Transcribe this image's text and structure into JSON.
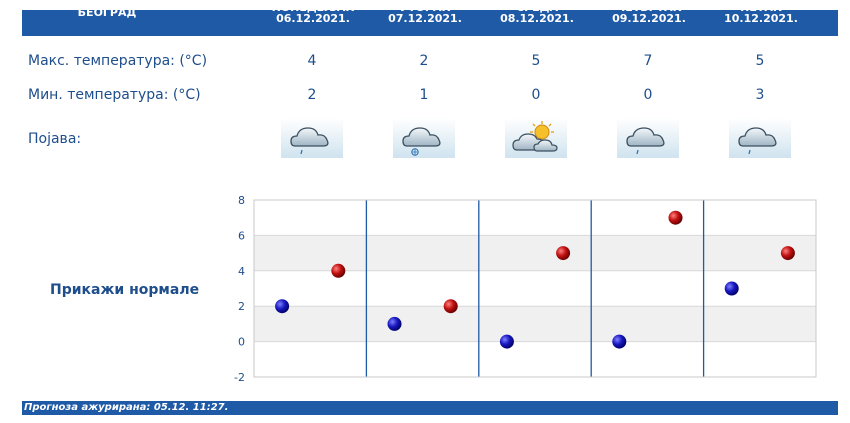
{
  "header": {
    "city": "БЕОГРАД",
    "days": [
      {
        "day": "ПОНЕДЕЉАК",
        "date": "06.12.2021."
      },
      {
        "day": "УТОРАК",
        "date": "07.12.2021."
      },
      {
        "day": "СРЕДА",
        "date": "08.12.2021."
      },
      {
        "day": "ЧЕТВРТАК",
        "date": "09.12.2021."
      },
      {
        "day": "ПЕТАК",
        "date": "10.12.2021."
      }
    ]
  },
  "rows": {
    "max_label": "Макс. температура: (°C)",
    "min_label": "Мин. температура: (°C)",
    "phen_label": "Појава:",
    "max": [
      "4",
      "2",
      "5",
      "7",
      "5"
    ],
    "min": [
      "2",
      "1",
      "0",
      "0",
      "3"
    ],
    "icons": [
      "cloud-rain-icon",
      "cloud-snow-icon",
      "sun-cloud-icon",
      "cloud-rain-icon",
      "cloud-rain-icon"
    ]
  },
  "normals_label": "Прикажи нормале",
  "footer": {
    "text": "Прогноза ажурирана:  05.12. 11:27."
  },
  "colors": {
    "accent": "#1f5aa6",
    "text": "#1e4e8c",
    "min_dot": "#1010a0",
    "max_dot": "#c01010"
  },
  "chart_data": {
    "type": "scatter",
    "categories": [
      "ПОНЕДЕЉАК",
      "УТОРАК",
      "СРЕДА",
      "ЧЕТВРТАК",
      "ПЕТАК"
    ],
    "ylim": [
      -2,
      8
    ],
    "yticks": [
      "8",
      "6",
      "4",
      "2",
      "0",
      "-2"
    ],
    "series": [
      {
        "values": [
          2,
          1,
          0,
          0,
          3
        ],
        "color": "#1010a0"
      },
      {
        "values": [
          4,
          2,
          5,
          7,
          5
        ],
        "color": "#c01010"
      }
    ],
    "grid": true
  }
}
